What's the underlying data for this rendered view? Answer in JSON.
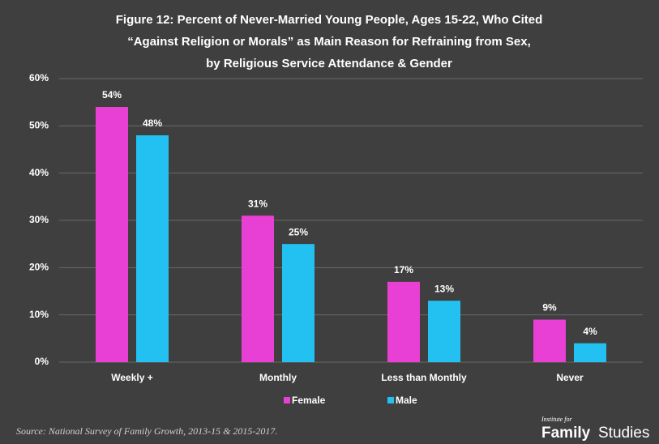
{
  "chart_data": {
    "type": "bar",
    "title": [
      "Figure 12: Percent of Never-Married Young People, Ages 15-22, Who Cited",
      "“Against Religion or Morals” as Main Reason for Refraining from Sex,",
      "by Religious Service Attendance & Gender"
    ],
    "categories": [
      "Weekly +",
      "Monthly",
      "Less than Monthly",
      "Never"
    ],
    "series": [
      {
        "name": "Female",
        "color": "#e83fd4",
        "values": [
          54,
          31,
          17,
          9
        ],
        "value_labels": [
          "54%",
          "31%",
          "17%",
          "9%"
        ]
      },
      {
        "name": "Male",
        "color": "#22c1f1",
        "values": [
          48,
          25,
          13,
          4
        ],
        "value_labels": [
          "48%",
          "25%",
          "13%",
          "4%"
        ]
      }
    ],
    "ylim": [
      0,
      60
    ],
    "yticks": [
      {
        "value": 0,
        "label": "0%"
      },
      {
        "value": 10,
        "label": "10%"
      },
      {
        "value": 20,
        "label": "20%"
      },
      {
        "value": 30,
        "label": "30%"
      },
      {
        "value": 40,
        "label": "40%"
      },
      {
        "value": 50,
        "label": "50%"
      },
      {
        "value": 60,
        "label": "60%"
      }
    ],
    "grid": true,
    "legend": "bottom",
    "source": "Source: National Survey of Family Growth, 2013-15 & 2015-2017.",
    "logo": {
      "small": "Institute for",
      "bold": "Family",
      "light": "Studies"
    }
  }
}
